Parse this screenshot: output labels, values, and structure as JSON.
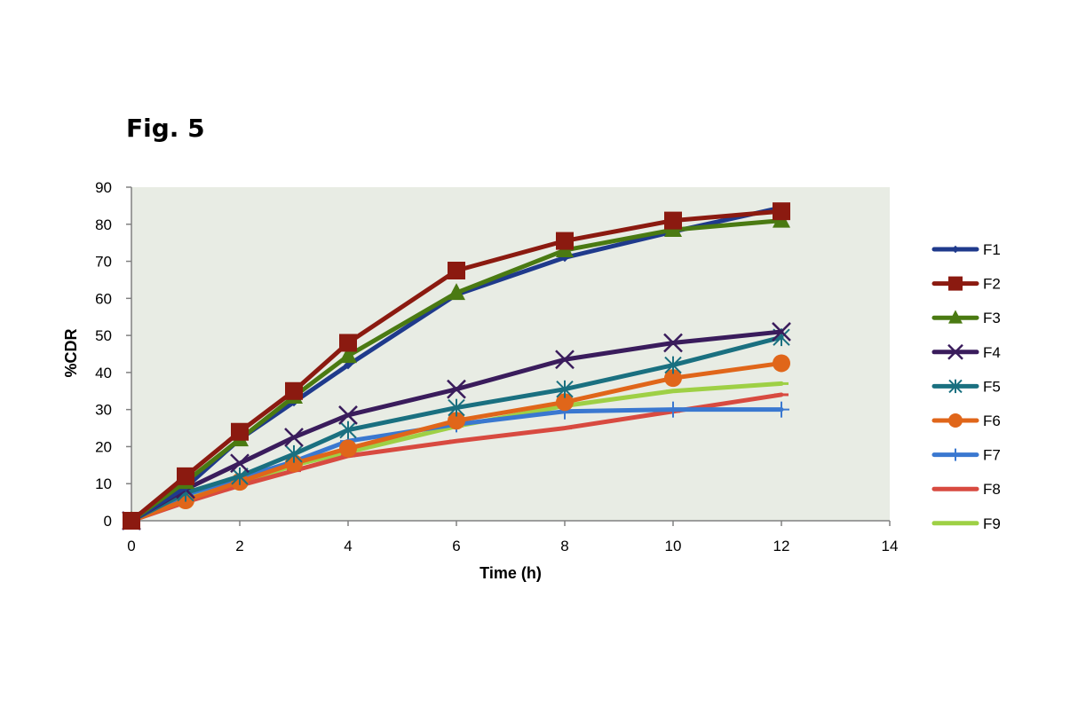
{
  "figure": {
    "title": "Fig. 5"
  },
  "chart_data": {
    "type": "line",
    "title": "Fig. 5",
    "xlabel": "Time (h)",
    "ylabel": "%CDR",
    "xlim": [
      0,
      14
    ],
    "ylim": [
      0,
      90
    ],
    "x_ticks": [
      0,
      2,
      4,
      6,
      8,
      10,
      12,
      14
    ],
    "y_ticks": [
      0,
      10,
      20,
      30,
      40,
      50,
      60,
      70,
      80,
      90
    ],
    "grid": false,
    "plot_background": "#e8ece4",
    "legend_position": "right",
    "x": [
      0,
      1,
      2,
      3,
      4,
      6,
      8,
      10,
      12
    ],
    "series": [
      {
        "name": "F1",
        "color": "#1f3a8c",
        "marker": "diamond",
        "values": [
          0,
          9,
          22,
          32,
          42,
          61,
          71,
          78,
          84.5
        ]
      },
      {
        "name": "F2",
        "color": "#8b1a10",
        "marker": "square",
        "values": [
          0,
          12,
          24,
          35,
          48,
          67.5,
          75.5,
          81,
          83.5
        ]
      },
      {
        "name": "F3",
        "color": "#4a7a12",
        "marker": "triangle",
        "values": [
          0,
          10.5,
          22,
          33.5,
          44.5,
          61.5,
          73,
          78.5,
          81
        ]
      },
      {
        "name": "F4",
        "color": "#3a1c5c",
        "marker": "x",
        "values": [
          0,
          8.5,
          15.5,
          22.5,
          28.5,
          35.5,
          43.5,
          48,
          51
        ]
      },
      {
        "name": "F5",
        "color": "#1a7080",
        "marker": "asterisk",
        "values": [
          0,
          7.5,
          12,
          18,
          24.5,
          30.5,
          35.5,
          42,
          49.5
        ]
      },
      {
        "name": "F6",
        "color": "#e0661a",
        "marker": "circle",
        "values": [
          0,
          5.5,
          10.5,
          15.5,
          19.5,
          27,
          32,
          38.5,
          42.5
        ]
      },
      {
        "name": "F7",
        "color": "#3a78d0",
        "marker": "plus",
        "values": [
          0,
          7,
          11.5,
          16,
          21.5,
          26,
          29.5,
          30,
          30
        ]
      },
      {
        "name": "F8",
        "color": "#d84a40",
        "marker": "dash",
        "values": [
          0,
          5,
          9.5,
          13.5,
          17.5,
          21.5,
          25,
          29.5,
          34
        ]
      },
      {
        "name": "F9",
        "color": "#9ed045",
        "marker": "dash",
        "values": [
          0,
          6,
          10,
          15,
          18.5,
          25.5,
          31,
          35,
          37
        ]
      }
    ]
  }
}
